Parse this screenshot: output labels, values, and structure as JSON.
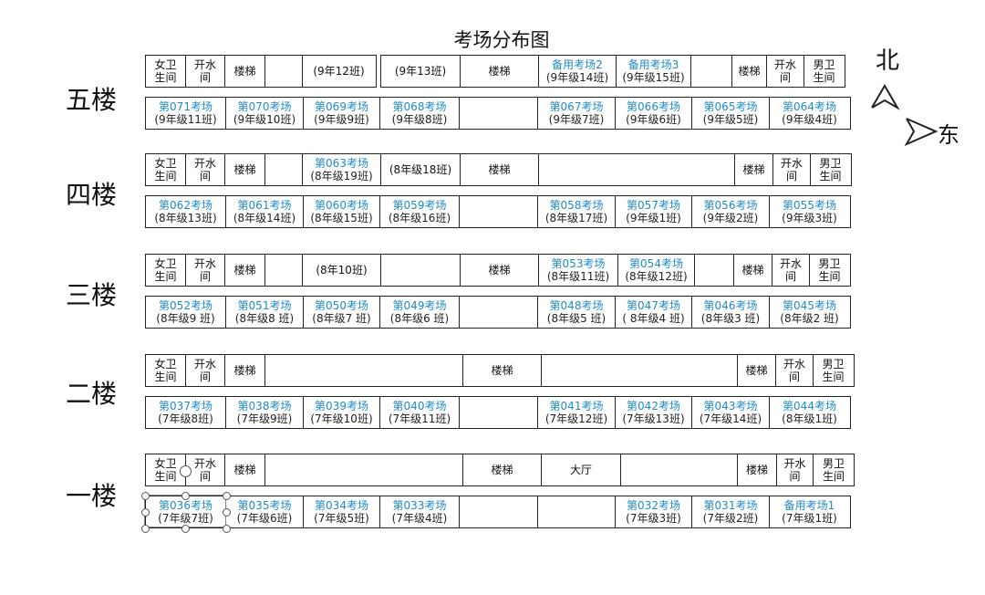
{
  "title": "考场分布图",
  "compass": {
    "north": "北",
    "east": "东"
  },
  "floors": [
    {
      "label": "五楼",
      "north_row": [
        {
          "w": 46,
          "lines": [
            "女卫",
            "生间"
          ]
        },
        {
          "w": 44,
          "lines": [
            "开水",
            "间"
          ]
        },
        {
          "w": 46,
          "lines": [
            "楼梯"
          ]
        },
        {
          "w": 42,
          "lines": []
        },
        {
          "w": 82,
          "lines": [
            "(9年12班)"
          ]
        },
        {
          "w": 6,
          "lines": [],
          "blank": true
        },
        {
          "w": 88,
          "lines": [
            "(9年13班)"
          ]
        },
        {
          "w": 88,
          "lines": [
            "楼梯"
          ]
        },
        {
          "w": 86,
          "room": "备用考场2",
          "cls": "(9年级14班)"
        },
        {
          "w": 84,
          "room": "备用考场3",
          "cls": "(9年级15班)"
        },
        {
          "w": 46,
          "lines": []
        },
        {
          "w": 40,
          "lines": [
            "楼梯"
          ]
        },
        {
          "w": 42,
          "lines": [
            "开水",
            "间"
          ]
        },
        {
          "w": 46,
          "lines": [
            "男卫",
            "生间"
          ]
        }
      ],
      "south_row": [
        {
          "w": 90,
          "room": "第071考场",
          "cls": "(9年级11班)"
        },
        {
          "w": 86,
          "room": "第070考场",
          "cls": "(9年级10班)"
        },
        {
          "w": 86,
          "room": "第069考场",
          "cls": "(9年级9班)"
        },
        {
          "w": 88,
          "room": "第068考场",
          "cls": "(9年级8班)"
        },
        {
          "w": 88,
          "lines": []
        },
        {
          "w": 86,
          "room": "第067考场",
          "cls": "(9年级7班)"
        },
        {
          "w": 86,
          "room": "第066考场",
          "cls": "(9年级6班)"
        },
        {
          "w": 86,
          "room": "第065考场",
          "cls": "(9年级5班)"
        },
        {
          "w": 90,
          "room": "第064考场",
          "cls": "(9年级4班)"
        }
      ]
    },
    {
      "label": "四楼",
      "north_row": [
        {
          "w": 46,
          "lines": [
            "女卫",
            "生间"
          ]
        },
        {
          "w": 44,
          "lines": [
            "开水",
            "间"
          ]
        },
        {
          "w": 46,
          "lines": [
            "楼梯"
          ]
        },
        {
          "w": 42,
          "lines": []
        },
        {
          "w": 88,
          "room": "第063考场",
          "cls": "(8年级19班)"
        },
        {
          "w": 88,
          "lines": [
            "(8年级18班)"
          ]
        },
        {
          "w": 88,
          "lines": [
            "楼梯"
          ]
        },
        {
          "w": 216,
          "lines": []
        },
        {
          "w": 44,
          "lines": [
            "楼梯"
          ]
        },
        {
          "w": 42,
          "lines": [
            "开水",
            "间"
          ]
        },
        {
          "w": 46,
          "lines": [
            "男卫",
            "生间"
          ]
        }
      ],
      "south_row": [
        {
          "w": 90,
          "room": "第062考场",
          "cls": "(8年级13班)"
        },
        {
          "w": 86,
          "room": "第061考场",
          "cls": "(8年级14班)"
        },
        {
          "w": 86,
          "room": "第060考场",
          "cls": "(8年级15班)"
        },
        {
          "w": 88,
          "room": "第059考场",
          "cls": "(8年级16班)"
        },
        {
          "w": 88,
          "lines": []
        },
        {
          "w": 86,
          "room": "第058考场",
          "cls": "(8年级17班)"
        },
        {
          "w": 86,
          "room": "第057考场",
          "cls": "(9年级1班)"
        },
        {
          "w": 86,
          "room": "第056考场",
          "cls": "(9年级2班)"
        },
        {
          "w": 90,
          "room": "第055考场",
          "cls": "(9年级3班)"
        }
      ]
    },
    {
      "label": "三楼",
      "north_row": [
        {
          "w": 46,
          "lines": [
            "女卫",
            "生间"
          ]
        },
        {
          "w": 44,
          "lines": [
            "开水",
            "间"
          ]
        },
        {
          "w": 46,
          "lines": [
            "楼梯"
          ]
        },
        {
          "w": 42,
          "lines": []
        },
        {
          "w": 88,
          "lines": [
            "(8年10班)"
          ]
        },
        {
          "w": 88,
          "lines": []
        },
        {
          "w": 88,
          "lines": [
            "楼梯"
          ]
        },
        {
          "w": 88,
          "room": "第053考场",
          "cls": "(8年级11班)"
        },
        {
          "w": 86,
          "room": "第054考场",
          "cls": "(8年级12班)"
        },
        {
          "w": 44,
          "lines": []
        },
        {
          "w": 44,
          "lines": [
            "楼梯"
          ]
        },
        {
          "w": 42,
          "lines": [
            "开水",
            "间"
          ]
        },
        {
          "w": 46,
          "lines": [
            "男卫",
            "生间"
          ]
        }
      ],
      "south_row": [
        {
          "w": 90,
          "room": "第052考场",
          "cls": "(8年级9 班)"
        },
        {
          "w": 86,
          "room": "第051考场",
          "cls": "(8年级8 班)"
        },
        {
          "w": 86,
          "room": "第050考场",
          "cls": "(8年级7 班)"
        },
        {
          "w": 88,
          "room": "第049考场",
          "cls": "(8年级6 班)"
        },
        {
          "w": 88,
          "lines": []
        },
        {
          "w": 86,
          "room": "第048考场",
          "cls": "(8年级5 班)"
        },
        {
          "w": 86,
          "room": "第047考场",
          "cls": "( 8年级4 班)"
        },
        {
          "w": 86,
          "room": "第046考场",
          "cls": "(8年级3 班)"
        },
        {
          "w": 90,
          "room": "第045考场",
          "cls": "(8年级2 班)"
        }
      ]
    },
    {
      "label": "二楼",
      "north_row": [
        {
          "w": 46,
          "lines": [
            "女卫",
            "生间"
          ]
        },
        {
          "w": 44,
          "lines": [
            "开水",
            "间"
          ]
        },
        {
          "w": 46,
          "lines": [
            "楼梯"
          ]
        },
        {
          "w": 218,
          "lines": []
        },
        {
          "w": 88,
          "lines": [
            "楼梯"
          ]
        },
        {
          "w": 216,
          "lines": []
        },
        {
          "w": 44,
          "lines": [
            "楼梯"
          ]
        },
        {
          "w": 42,
          "lines": [
            "开水",
            "间"
          ]
        },
        {
          "w": 46,
          "lines": [
            "男卫",
            "生间"
          ]
        }
      ],
      "south_row": [
        {
          "w": 90,
          "room": "第037考场",
          "cls": "(7年级8班)"
        },
        {
          "w": 86,
          "room": "第038考场",
          "cls": "(7年级9班)"
        },
        {
          "w": 86,
          "room": "第039考场",
          "cls": "(7年级10班)"
        },
        {
          "w": 88,
          "room": "第040考场",
          "cls": "(7年级11班)"
        },
        {
          "w": 88,
          "lines": []
        },
        {
          "w": 86,
          "room": "第041考场",
          "cls": "(7年级12班)"
        },
        {
          "w": 86,
          "room": "第042考场",
          "cls": "(7年级13班)"
        },
        {
          "w": 86,
          "room": "第043考场",
          "cls": "(7年级14班)"
        },
        {
          "w": 90,
          "room": "第044考场",
          "cls": "(8年级1班)"
        }
      ]
    },
    {
      "label": "一楼",
      "north_row": [
        {
          "w": 46,
          "lines": [
            "女卫",
            "生间"
          ]
        },
        {
          "w": 44,
          "lines": [
            "开水",
            "间"
          ]
        },
        {
          "w": 46,
          "lines": [
            "楼梯"
          ]
        },
        {
          "w": 218,
          "lines": []
        },
        {
          "w": 88,
          "lines": [
            "楼梯"
          ]
        },
        {
          "w": 88,
          "lines": [
            "大厅"
          ]
        },
        {
          "w": 130,
          "lines": []
        },
        {
          "w": 44,
          "lines": [
            "楼梯"
          ]
        },
        {
          "w": 42,
          "lines": [
            "开水",
            "间"
          ]
        },
        {
          "w": 46,
          "lines": [
            "男卫",
            "生间"
          ]
        }
      ],
      "south_row": [
        {
          "w": 90,
          "room": "第036考场",
          "cls": "(7年级7班)"
        },
        {
          "w": 86,
          "room": "第035考场",
          "cls": "(7年级6班)"
        },
        {
          "w": 86,
          "room": "第034考场",
          "cls": "(7年级5班)"
        },
        {
          "w": 88,
          "room": "第033考场",
          "cls": "(7年级4班)"
        },
        {
          "w": 88,
          "lines": []
        },
        {
          "w": 86,
          "lines": []
        },
        {
          "w": 86,
          "room": "第032考场",
          "cls": "(7年级3班)"
        },
        {
          "w": 86,
          "room": "第031考场",
          "cls": "(7年级2班)"
        },
        {
          "w": 90,
          "room": "备用考场1",
          "cls": "(7年级1班)"
        }
      ]
    }
  ]
}
